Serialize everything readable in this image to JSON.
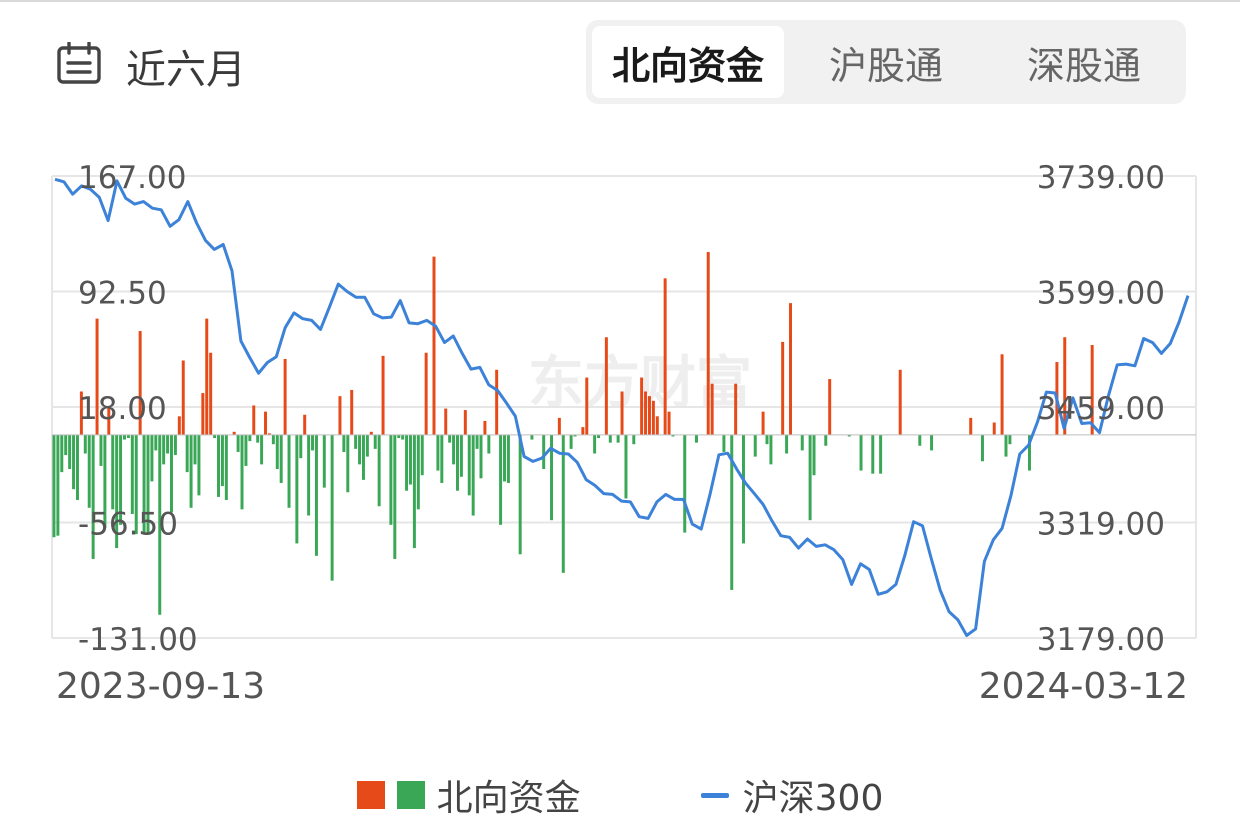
{
  "period": {
    "label": "近六月",
    "icon": "calendar-icon"
  },
  "tabs": [
    {
      "label": "北向资金",
      "active": true
    },
    {
      "label": "沪股通",
      "active": false
    },
    {
      "label": "深股通",
      "active": false
    }
  ],
  "watermark": "东方财富",
  "colors": {
    "inflow": "#e64a19",
    "outflow": "#3aa757",
    "index_line": "#3c82d8",
    "grid": "#e6e6e6",
    "zero_line": "#bdbdbd"
  },
  "chart_data": {
    "type": "bar+line",
    "title": "",
    "xlabel": "",
    "ylabel": "",
    "x_start_label": "2023-09-13",
    "x_end_label": "2024-03-12",
    "left_axis": {
      "range": [
        -131,
        167
      ],
      "ticks": [
        "167.00",
        "92.50",
        "18.00",
        "-56.50",
        "-131.00"
      ]
    },
    "right_axis": {
      "range": [
        3179,
        3739
      ],
      "ticks": [
        "3739.00",
        "3599.00",
        "3459.00",
        "3319.00",
        "3179.00"
      ]
    },
    "grid": true,
    "legend": "bottom",
    "series": [
      {
        "name": "北向资金",
        "axis": "left",
        "values": [
          -66,
          -65,
          -24,
          -13,
          -22,
          -35,
          -42,
          28,
          -12,
          -47,
          -80,
          75,
          -20,
          -60,
          18,
          -48,
          -73,
          -58,
          -3,
          -2,
          -51,
          -64,
          67,
          -64,
          -64,
          -30,
          -10,
          -116,
          -19,
          -12,
          -50,
          -13,
          12,
          48,
          -24,
          -47,
          -19,
          -39,
          27,
          75,
          53,
          -2,
          -40,
          -33,
          -42,
          0,
          2,
          -11,
          -48,
          -20,
          -4,
          19,
          -5,
          -19,
          15,
          1,
          -6,
          -22,
          -31,
          49,
          -47,
          0,
          -70,
          -15,
          13,
          -52,
          -10,
          -78,
          0,
          -34,
          0,
          -94,
          0,
          25,
          -11,
          -37,
          29,
          -9,
          -19,
          -29,
          -14,
          2,
          -9,
          -46,
          51,
          0,
          -58,
          -80,
          -2,
          -3,
          -36,
          -32,
          -73,
          -48,
          -26,
          53,
          0,
          115,
          -23,
          -31,
          17,
          -5,
          -19,
          -36,
          -27,
          16,
          -39,
          -52,
          -9,
          -28,
          9,
          -12,
          0,
          42,
          -58,
          -30,
          -31,
          0,
          0,
          -77,
          0,
          0,
          -3,
          0,
          0,
          -22,
          0,
          -55,
          0,
          11,
          -89,
          0,
          -9,
          -1,
          0,
          5,
          37,
          0,
          -12,
          -2,
          0,
          63,
          -5,
          0,
          -5,
          28,
          -41,
          0,
          -6,
          0,
          37,
          28,
          25,
          22,
          12,
          0,
          101,
          15,
          -1,
          0,
          0,
          -63,
          0,
          0,
          -5,
          0,
          0,
          118,
          33,
          0,
          0,
          -11,
          0,
          -100,
          33,
          0,
          -70,
          0,
          0,
          -14,
          0,
          15,
          -6,
          -19,
          0,
          0,
          60,
          -12,
          85,
          0,
          0,
          -10,
          0,
          -55,
          -26,
          0,
          0,
          -7,
          36,
          0,
          0,
          0,
          0,
          -1,
          0,
          0,
          -23,
          0,
          0,
          -25,
          0,
          -25,
          0,
          0,
          0,
          0,
          42,
          0,
          0,
          0,
          0,
          -7,
          0,
          0,
          -10,
          0,
          0,
          0,
          0,
          0,
          0,
          0,
          0,
          0,
          11,
          0,
          0,
          -17,
          0,
          0,
          8,
          0,
          52,
          -14,
          -6,
          0,
          0,
          0,
          0,
          -23,
          0,
          0,
          0,
          0,
          0,
          0,
          47,
          0,
          63,
          0,
          0,
          0,
          0,
          0,
          0,
          58,
          0,
          0,
          0,
          0,
          0,
          0,
          0,
          0,
          0,
          0,
          0,
          0,
          0,
          0,
          0,
          0,
          0,
          0,
          0,
          0,
          0,
          0,
          0,
          0,
          0,
          0
        ]
      },
      {
        "name": "沪深300",
        "axis": "right",
        "values": [
          3735,
          3732,
          3717,
          3727,
          3723,
          3713,
          3685,
          3733,
          3712,
          3705,
          3708,
          3700,
          3698,
          3678,
          3686,
          3708,
          3682,
          3661,
          3650,
          3656,
          3624,
          3539,
          3519,
          3500,
          3513,
          3520,
          3555,
          3573,
          3566,
          3564,
          3553,
          3580,
          3608,
          3599,
          3592,
          3592,
          3572,
          3567,
          3568,
          3588,
          3561,
          3560,
          3564,
          3557,
          3537,
          3545,
          3524,
          3505,
          3507,
          3486,
          3479,
          3464,
          3448,
          3399,
          3393,
          3397,
          3409,
          3403,
          3402,
          3392,
          3371,
          3364,
          3354,
          3353,
          3345,
          3344,
          3326,
          3324,
          3344,
          3353,
          3347,
          3347,
          3317,
          3311,
          3353,
          3401,
          3403,
          3384,
          3367,
          3354,
          3341,
          3321,
          3303,
          3301,
          3288,
          3299,
          3290,
          3292,
          3286,
          3274,
          3244,
          3269,
          3262,
          3232,
          3235,
          3244,
          3279,
          3320,
          3315,
          3275,
          3237,
          3211,
          3201,
          3182,
          3190,
          3272,
          3298,
          3312,
          3352,
          3402,
          3413,
          3441,
          3477,
          3476,
          3433,
          3470,
          3439,
          3440,
          3428,
          3472,
          3510,
          3511,
          3509,
          3542,
          3537,
          3524,
          3536,
          3562,
          3594
        ]
      }
    ]
  },
  "legend": {
    "bar_label": "北向资金",
    "line_label": "沪深300"
  }
}
